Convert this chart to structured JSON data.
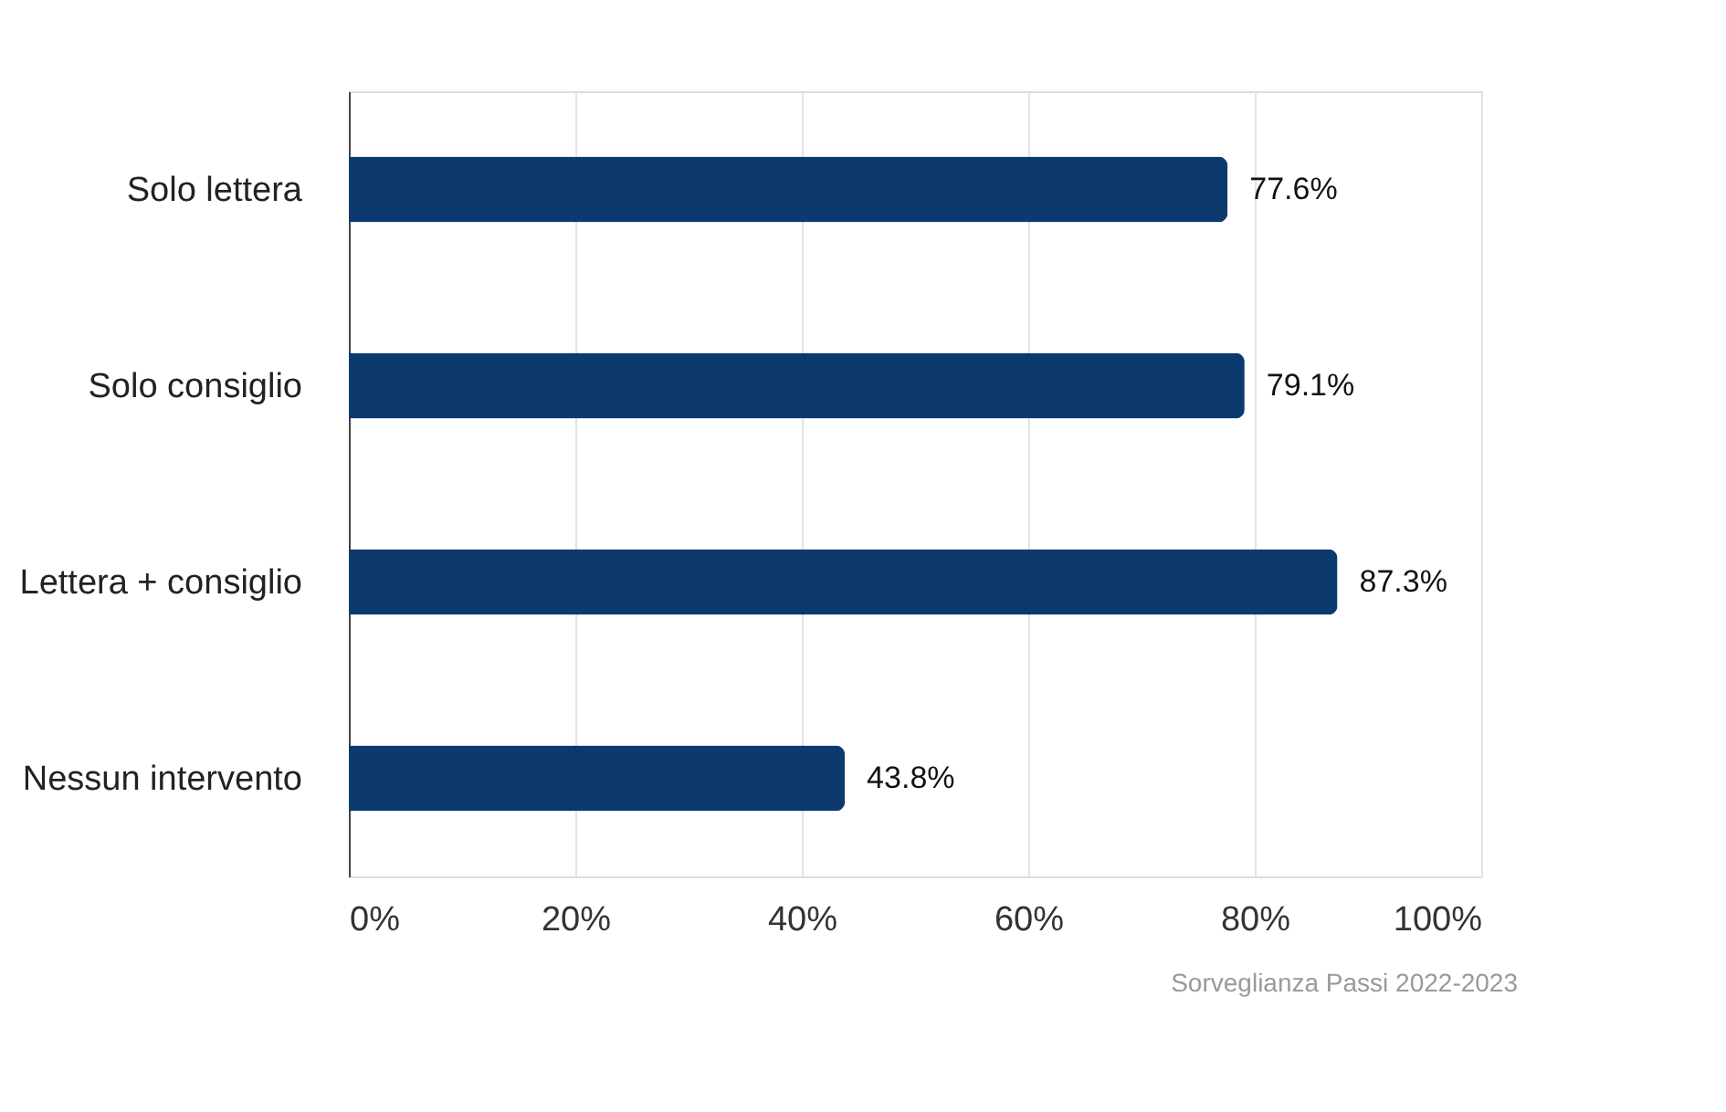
{
  "chart_data": {
    "type": "bar",
    "orientation": "horizontal",
    "categories": [
      "Solo lettera",
      "Solo consiglio",
      "Lettera + consiglio",
      "Nessun intervento"
    ],
    "values": [
      77.6,
      79.1,
      87.3,
      43.8
    ],
    "color": "#0d3a6e",
    "value_labels": [
      "77.6%",
      "79.1%",
      "87.3%",
      "43.8%"
    ],
    "xlim": [
      0,
      100
    ],
    "xticks": [
      {
        "value": 0,
        "label": "0%"
      },
      {
        "value": 20,
        "label": "20%"
      },
      {
        "value": 40,
        "label": "40%"
      },
      {
        "value": 60,
        "label": "60%"
      },
      {
        "value": 80,
        "label": "80%"
      },
      {
        "value": 100,
        "label": "100%"
      }
    ],
    "grid": "x",
    "annotations": [
      "Sorveglianza Passi 2022-2023"
    ]
  }
}
